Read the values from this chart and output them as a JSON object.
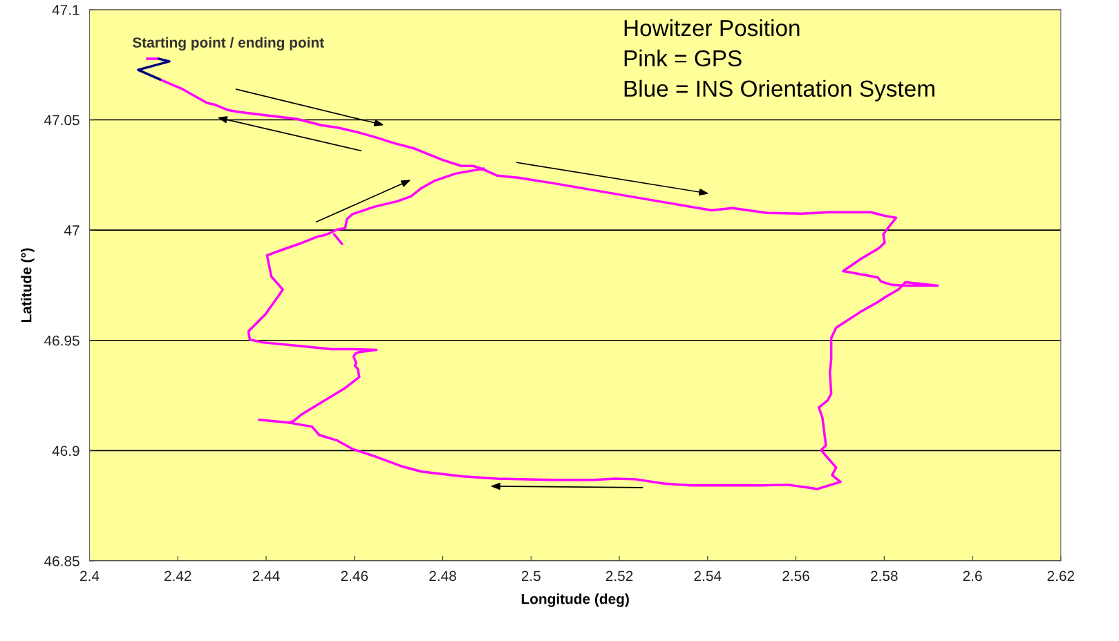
{
  "chart_data": {
    "type": "line",
    "xlabel": "Longitude (deg)",
    "ylabel": "Latitude (°)",
    "xlim": [
      2.4,
      2.62
    ],
    "xticks": [
      2.4,
      2.42,
      2.44,
      2.46,
      2.48,
      2.5,
      2.52,
      2.54,
      2.56,
      2.58,
      2.6,
      2.62
    ],
    "ylim": [
      46.85,
      47.1
    ],
    "yticks": [
      46.85,
      46.9,
      46.95,
      47,
      47.05,
      47.1
    ],
    "grid": "y",
    "marker": "none",
    "line_style": "solid",
    "annotations": [
      "Starting point / ending point",
      "Howitzer Position",
      "Pink = GPS",
      "Blue = INS Orientation System"
    ],
    "series": [
      {
        "color": "#ff00ff",
        "x": [
          2.416,
          2.4211,
          2.4266,
          2.4282,
          2.4313,
          2.4337,
          2.4391,
          2.447,
          2.4525,
          2.4564,
          2.4611,
          2.465,
          2.4689,
          2.4736,
          2.4799,
          2.4842,
          2.4869,
          2.4888,
          2.4924,
          2.4971,
          2.5049,
          2.5206,
          2.5409,
          2.5456,
          2.5535,
          2.5613,
          2.5676,
          2.577,
          2.5801,
          2.5827,
          2.5806,
          2.5798,
          2.5801,
          2.5788,
          2.5746,
          2.5707,
          2.5785,
          2.5793,
          2.5817,
          2.5848,
          2.5921,
          2.5848,
          2.5832,
          2.5804,
          2.5785,
          2.5746,
          2.5691,
          2.568,
          2.568,
          2.5677,
          2.568,
          2.5672,
          2.5652,
          2.566,
          2.5668,
          2.5657,
          2.5691,
          2.5682,
          2.5701,
          2.5649,
          2.5629,
          2.5582,
          2.5519,
          2.5441,
          2.5362,
          2.53,
          2.5237,
          2.519,
          2.5143,
          2.5049,
          2.4924,
          2.4846,
          2.4752,
          2.4705,
          2.4642,
          2.4595,
          2.4561,
          2.452,
          2.4504,
          2.4451,
          2.4462,
          2.4481,
          2.4517,
          2.4579,
          2.4611,
          2.4608,
          2.4601,
          2.4604,
          2.4598,
          2.4603,
          2.4611,
          2.465,
          2.4595,
          2.4548,
          2.4454,
          2.4391,
          2.4363,
          2.436,
          2.4399,
          2.4438,
          2.4412,
          2.4402,
          2.4438,
          2.4474,
          2.4517,
          2.4532,
          2.4545,
          2.4561,
          2.4579,
          2.4583,
          2.4595,
          2.4645,
          2.4697,
          2.4728,
          2.4752,
          2.4783,
          2.483,
          2.4893
        ],
        "values": [
          47.0683,
          47.0639,
          47.0577,
          47.057,
          47.0545,
          47.0536,
          47.0523,
          47.0504,
          47.0476,
          47.0464,
          47.0442,
          47.042,
          47.0395,
          47.037,
          47.0319,
          47.0291,
          47.0291,
          47.0279,
          47.0247,
          47.0238,
          47.0213,
          47.0159,
          47.009,
          47.01,
          47.0078,
          47.0075,
          47.0081,
          47.0081,
          47.0065,
          47.0056,
          47.0003,
          46.9981,
          46.9943,
          46.9918,
          46.9868,
          46.9814,
          46.9786,
          46.9767,
          46.9752,
          46.9748,
          46.9748,
          46.9764,
          46.973,
          46.9698,
          46.9673,
          46.9629,
          46.9557,
          46.951,
          46.9416,
          46.9353,
          46.9259,
          46.9228,
          46.9196,
          46.9149,
          46.9024,
          46.9002,
          46.8923,
          46.8889,
          46.8858,
          46.8826,
          46.8832,
          46.8845,
          46.8842,
          46.8842,
          46.8842,
          46.8851,
          46.887,
          46.8873,
          46.8867,
          46.8867,
          46.8873,
          46.8883,
          46.8905,
          46.893,
          46.8977,
          46.9008,
          46.9046,
          46.9071,
          46.9109,
          46.9127,
          46.9134,
          46.9165,
          46.9209,
          46.9284,
          46.9334,
          46.9369,
          46.9385,
          46.9397,
          46.9428,
          46.9441,
          46.9447,
          46.9457,
          46.946,
          46.946,
          46.9479,
          46.9491,
          46.9504,
          46.9541,
          46.962,
          46.973,
          46.9789,
          46.9886,
          46.9912,
          46.9937,
          46.9971,
          46.9977,
          46.9987,
          47.0003,
          47.0009,
          47.005,
          47.0072,
          47.0106,
          47.0131,
          47.0153,
          47.0191,
          47.0225,
          47.0257,
          47.0279
        ]
      },
      {
        "color": "#ff00ff",
        "x": [
          2.4451,
          2.4384
        ],
        "values": [
          46.9127,
          46.914
        ]
      },
      {
        "color": "#ff00ff",
        "x": [
          2.4554,
          2.4572
        ],
        "values": [
          46.9981,
          46.9937
        ]
      },
      {
        "color": "#ff00ff",
        "x": [
          2.413,
          2.4157
        ],
        "values": [
          47.0777,
          47.0777
        ]
      },
      {
        "color": "#000080",
        "x": [
          2.4157,
          2.4181,
          2.411,
          2.416
        ],
        "values": [
          47.0777,
          47.0765,
          47.0727,
          47.0683
        ]
      }
    ]
  }
}
